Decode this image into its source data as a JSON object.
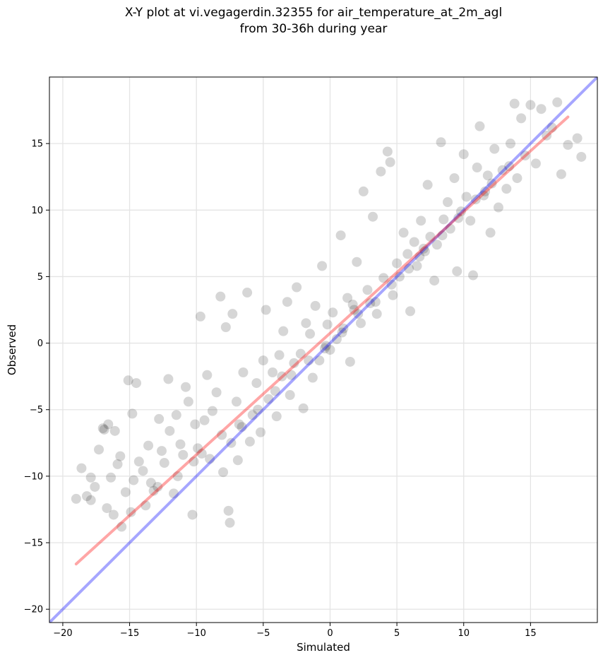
{
  "chart_data": {
    "type": "scatter",
    "title_line1": "X-Y plot at vi.vegagerdin.32355 for air_temperature_at_2m_agl",
    "title_line2": "from 30-36h during year",
    "xlabel": "Simulated",
    "ylabel": "Observed",
    "xlim": [
      -21,
      20
    ],
    "ylim": [
      -21,
      20
    ],
    "xticks": [
      -20,
      -15,
      -10,
      -5,
      0,
      5,
      10,
      15
    ],
    "yticks": [
      -20,
      -15,
      -10,
      -5,
      0,
      5,
      10,
      15
    ],
    "xtick_labels": [
      "−20",
      "−15",
      "−10",
      "−5",
      "0",
      "5",
      "10",
      "15"
    ],
    "ytick_labels": [
      "−20",
      "−15",
      "−10",
      "−5",
      "0",
      "5",
      "10",
      "15"
    ],
    "grid": true,
    "point_color": "#000000",
    "point_alpha": 0.06,
    "lines": [
      {
        "role": "identity",
        "color": "#0000ff",
        "x": [
          -21,
          20
        ],
        "y": [
          -21,
          20
        ]
      },
      {
        "role": "fit",
        "color": "#ff0000",
        "x": [
          -19,
          17.8
        ],
        "y": [
          -16.6,
          17.0
        ]
      }
    ],
    "series": [
      {
        "points": [
          [
            -19,
            -11.7
          ],
          [
            -18.6,
            -9.4
          ],
          [
            -18.2,
            -11.5
          ],
          [
            -17.9,
            -11.8
          ],
          [
            -17.6,
            -10.8
          ],
          [
            -17.3,
            -8.0
          ],
          [
            -17,
            -6.4
          ],
          [
            -16.9,
            -6.5
          ],
          [
            -16.6,
            -6.1
          ],
          [
            -16.7,
            -12.4
          ],
          [
            -16.4,
            -10.1
          ],
          [
            -16.1,
            -6.6
          ],
          [
            -15.9,
            -9.1
          ],
          [
            -15.7,
            -8.5
          ],
          [
            -15.6,
            -13.8
          ],
          [
            -15.3,
            -11.2
          ],
          [
            -15.1,
            -2.8
          ],
          [
            -14.5,
            -3.0
          ],
          [
            -14.8,
            -5.3
          ],
          [
            -14.7,
            -10.3
          ],
          [
            -14.3,
            -8.9
          ],
          [
            -14,
            -9.6
          ],
          [
            -13.6,
            -7.7
          ],
          [
            -13.4,
            -10.5
          ],
          [
            -13.2,
            -11.1
          ],
          [
            -12.8,
            -5.7
          ],
          [
            -12.6,
            -8.1
          ],
          [
            -12.4,
            -9.0
          ],
          [
            -12.1,
            -2.7
          ],
          [
            -12,
            -6.6
          ],
          [
            -11.7,
            -11.3
          ],
          [
            -11.5,
            -5.4
          ],
          [
            -11.2,
            -7.6
          ],
          [
            -11,
            -8.4
          ],
          [
            -10.8,
            -3.3
          ],
          [
            -10.6,
            -4.4
          ],
          [
            -10.3,
            -12.9
          ],
          [
            -10.1,
            -6.1
          ],
          [
            -9.9,
            -7.9
          ],
          [
            -9.7,
            2.0
          ],
          [
            -9.4,
            -5.8
          ],
          [
            -9.2,
            -2.4
          ],
          [
            -9,
            -8.7
          ],
          [
            -8.8,
            -5.1
          ],
          [
            -8.5,
            -3.7
          ],
          [
            -8.2,
            3.5
          ],
          [
            -8,
            -9.7
          ],
          [
            -7.8,
            1.2
          ],
          [
            -7.6,
            -12.6
          ],
          [
            -7.5,
            -13.5
          ],
          [
            -7.3,
            2.2
          ],
          [
            -7,
            -4.4
          ],
          [
            -6.8,
            -6.1
          ],
          [
            -6.5,
            -2.2
          ],
          [
            -6.2,
            3.8
          ],
          [
            -6,
            -7.4
          ],
          [
            -5.8,
            -5.4
          ],
          [
            -5.5,
            -3.0
          ],
          [
            -5.2,
            -6.7
          ],
          [
            -5,
            -1.3
          ],
          [
            -4.8,
            2.5
          ],
          [
            -4.6,
            -4.2
          ],
          [
            -4.3,
            -2.2
          ],
          [
            -4,
            -5.5
          ],
          [
            -3.8,
            -0.9
          ],
          [
            -3.5,
            0.9
          ],
          [
            -3.2,
            3.1
          ],
          [
            -3,
            -3.9
          ],
          [
            -2.7,
            -1.5
          ],
          [
            -2.5,
            4.2
          ],
          [
            -2.2,
            -0.8
          ],
          [
            -2,
            -4.9
          ],
          [
            -1.8,
            1.5
          ],
          [
            -1.5,
            0.7
          ],
          [
            -1.3,
            -2.6
          ],
          [
            -1.1,
            2.8
          ],
          [
            -0.8,
            -1.3
          ],
          [
            -0.6,
            5.8
          ],
          [
            -0.4,
            -0.4
          ],
          [
            -0.2,
            1.4
          ],
          [
            0,
            -0.5
          ],
          [
            0.2,
            2.3
          ],
          [
            0.5,
            0.3
          ],
          [
            0.8,
            8.1
          ],
          [
            1,
            1.1
          ],
          [
            1.3,
            3.4
          ],
          [
            1.5,
            -1.4
          ],
          [
            1.8,
            2.5
          ],
          [
            2,
            6.1
          ],
          [
            2.3,
            1.5
          ],
          [
            2.5,
            11.4
          ],
          [
            2.8,
            4.0
          ],
          [
            3,
            3.0
          ],
          [
            3.2,
            9.5
          ],
          [
            3.5,
            2.2
          ],
          [
            3.8,
            12.9
          ],
          [
            4,
            4.9
          ],
          [
            4.3,
            14.4
          ],
          [
            4.5,
            13.6
          ],
          [
            4.7,
            3.6
          ],
          [
            5,
            6.0
          ],
          [
            5.2,
            5.0
          ],
          [
            5.5,
            8.3
          ],
          [
            5.8,
            6.7
          ],
          [
            6,
            2.4
          ],
          [
            6.3,
            7.6
          ],
          [
            6.5,
            5.8
          ],
          [
            6.8,
            9.2
          ],
          [
            7,
            7.1
          ],
          [
            7.3,
            11.9
          ],
          [
            7.5,
            8.0
          ],
          [
            7.8,
            4.7
          ],
          [
            8,
            7.4
          ],
          [
            8.3,
            15.1
          ],
          [
            8.5,
            9.3
          ],
          [
            8.8,
            10.6
          ],
          [
            9,
            8.6
          ],
          [
            9.3,
            12.4
          ],
          [
            9.5,
            5.4
          ],
          [
            9.8,
            9.9
          ],
          [
            10,
            14.2
          ],
          [
            10.2,
            11.0
          ],
          [
            10.5,
            9.2
          ],
          [
            10.7,
            5.1
          ],
          [
            11,
            13.2
          ],
          [
            11.2,
            16.3
          ],
          [
            11.5,
            11.1
          ],
          [
            11.8,
            12.6
          ],
          [
            12,
            8.3
          ],
          [
            12.3,
            14.6
          ],
          [
            12.6,
            10.2
          ],
          [
            12.9,
            13.0
          ],
          [
            13.2,
            11.6
          ],
          [
            13.5,
            15.0
          ],
          [
            13.8,
            18.0
          ],
          [
            14,
            12.4
          ],
          [
            14.3,
            16.9
          ],
          [
            14.6,
            14.1
          ],
          [
            15,
            17.9
          ],
          [
            15.4,
            13.5
          ],
          [
            15.8,
            17.6
          ],
          [
            16.2,
            15.6
          ],
          [
            16.6,
            16.2
          ],
          [
            17,
            18.1
          ],
          [
            17.3,
            12.7
          ],
          [
            17.8,
            14.9
          ],
          [
            18.5,
            15.4
          ],
          [
            18.8,
            14.0
          ],
          [
            -16.2,
            -12.9
          ],
          [
            -13.8,
            -12.2
          ],
          [
            -11.4,
            -10.0
          ],
          [
            -9.6,
            -8.3
          ],
          [
            -8.1,
            -6.9
          ],
          [
            -6.6,
            -6.3
          ],
          [
            -5.4,
            -5.0
          ],
          [
            -4.1,
            -3.6
          ],
          [
            -2.9,
            -2.4
          ],
          [
            -1.6,
            -1.3
          ],
          [
            -0.3,
            -0.2
          ],
          [
            0.9,
            0.8
          ],
          [
            2.1,
            2.2
          ],
          [
            3.4,
            3.1
          ],
          [
            4.6,
            4.4
          ],
          [
            5.9,
            5.6
          ],
          [
            7.1,
            6.9
          ],
          [
            8.4,
            8.1
          ],
          [
            9.6,
            9.4
          ],
          [
            10.9,
            10.8
          ],
          [
            12.1,
            12.0
          ],
          [
            13.4,
            13.3
          ],
          [
            -12.9,
            -10.8
          ],
          [
            -10.2,
            -8.9
          ],
          [
            -7.4,
            -7.5
          ],
          [
            -3.6,
            -2.5
          ],
          [
            1.7,
            2.9
          ],
          [
            6.7,
            6.5
          ],
          [
            11.6,
            11.4
          ],
          [
            -17.9,
            -10.1
          ],
          [
            -14.9,
            -12.7
          ],
          [
            -6.9,
            -8.8
          ]
        ]
      }
    ]
  }
}
